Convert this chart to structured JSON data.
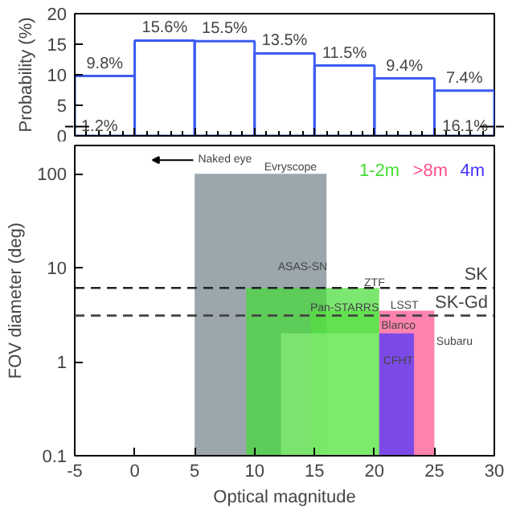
{
  "chart_data": [
    {
      "type": "histogram",
      "ylabel": "Probability (%)",
      "bins": [
        -5,
        0,
        5,
        10,
        15,
        20,
        25,
        30
      ],
      "values": [
        9.8,
        15.6,
        15.5,
        13.5,
        11.5,
        9.4,
        7.4
      ],
      "value_labels": [
        "9.8%",
        "15.6%",
        "15.5%",
        "13.5%",
        "11.5%",
        "9.4%",
        "7.4%"
      ],
      "color": "#3b5cf0",
      "xlim": [
        -5,
        30
      ],
      "ylim": [
        0,
        20
      ],
      "yticks": [
        0,
        5,
        10,
        15,
        20
      ],
      "tick_labels": "y",
      "grid": false,
      "annotations": [
        {
          "text": "1.2%",
          "x": -5,
          "y": 1.5
        },
        {
          "text": "16.1%",
          "x": 30,
          "y": 1.5
        }
      ]
    },
    {
      "type": "area",
      "xlabel": "Optical magnitude",
      "ylabel": "FOV diameter (deg)",
      "log": "y",
      "xlim": [
        -5,
        30
      ],
      "xticks": [
        -5,
        0,
        5,
        10,
        15,
        20,
        25,
        30
      ],
      "ylim": [
        0.1,
        200
      ],
      "yticks": [
        0.1,
        1,
        10,
        100
      ],
      "grid": false,
      "legend": "top right",
      "series": [
        {
          "color": "#70808a",
          "x": [
            5,
            16
          ],
          "values": [
            100,
            100
          ]
        },
        {
          "name": "1-2m",
          "color": "#44dd33",
          "x": [
            9.3,
            20.4
          ],
          "values": [
            6.1,
            6.1
          ]
        },
        {
          "color": "#55e040",
          "x": [
            14.7,
            20.4
          ],
          "values": [
            3.5,
            3.5
          ]
        },
        {
          "color": "#88ee77",
          "x": [
            12.2,
            20.4
          ],
          "values": [
            2.0,
            2.0
          ]
        },
        {
          "name": ">8m",
          "color": "#ff4f8b",
          "x": [
            20.4,
            25
          ],
          "values": [
            3.5,
            3.5
          ]
        },
        {
          "name": "4m",
          "color": "#4433ff",
          "x": [
            20.4,
            23.3
          ],
          "values": [
            2.0,
            2.0
          ]
        }
      ],
      "ref_lines": [
        {
          "axis": "y",
          "value": 6.1,
          "label": "SK",
          "line_style": "dashed",
          "color": "#222222"
        },
        {
          "axis": "y",
          "value": 3.1,
          "label": "SK-Gd",
          "line_style": "dashed",
          "color": "#444444"
        }
      ],
      "annotations": [
        "Naked eye",
        {
          "text": "Evryscope",
          "x": 13,
          "y": 115
        },
        "ASAS-SN",
        {
          "text": "ZTF",
          "x": 20,
          "y": 6.8
        },
        {
          "text": "Pan-STARRS",
          "x": 17.5,
          "y": 3.7
        },
        {
          "text": "LSST",
          "x": 22.5,
          "y": 3.9
        },
        {
          "text": "Blanco",
          "x": 22,
          "y": 2.4
        },
        "Subaru",
        "CFHT"
      ]
    }
  ]
}
